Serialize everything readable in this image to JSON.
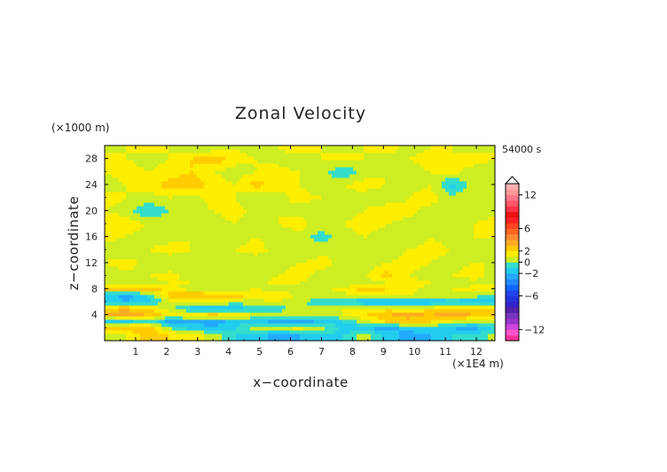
{
  "chart_data": {
    "type": "heatmap",
    "title": "Zonal Velocity",
    "xlabel": "x−coordinate",
    "ylabel": "z−coordinate",
    "x_unit": "(×1E4 m)",
    "y_unit": "(×1000 m)",
    "time_label": "54000 s",
    "xlim": [
      0,
      12.6
    ],
    "ylim": [
      0,
      30
    ],
    "x_ticks": [
      "1",
      "2",
      "3",
      "4",
      "5",
      "6",
      "7",
      "8",
      "9",
      "10",
      "11",
      "12"
    ],
    "y_ticks": [
      "4",
      "8",
      "12",
      "16",
      "20",
      "24",
      "28"
    ],
    "colorbar": {
      "vmin": -14,
      "vmax": 14,
      "tick_labels": [
        "12",
        "6",
        "2",
        "0",
        "−2",
        "−6",
        "−12"
      ],
      "tick_values": [
        12,
        6,
        2,
        0,
        -2,
        -6,
        -12
      ],
      "levels": [
        -14,
        -13,
        -12,
        -11,
        -10,
        -9,
        -8,
        -7,
        -6,
        -5,
        -4,
        -3,
        -2,
        -1,
        0,
        1,
        2,
        3,
        4,
        5,
        6,
        7,
        8,
        9,
        10,
        11,
        12,
        13,
        14
      ],
      "colors": [
        "#ff3399",
        "#ff55cc",
        "#cc44dd",
        "#9933cc",
        "#7733bb",
        "#5522aa",
        "#3322cc",
        "#2233dd",
        "#2244ee",
        "#1166ff",
        "#2288ff",
        "#22aaff",
        "#22ccee",
        "#33ddcc",
        "#ccee22",
        "#ffee00",
        "#ffcc00",
        "#ffaa22",
        "#ff8833",
        "#ff6622",
        "#ff4422",
        "#ff2222",
        "#ee1111",
        "#ff3344",
        "#ff5566",
        "#ff7788",
        "#ff9999",
        "#ffb0b0"
      ],
      "extend_max": true
    },
    "rows_z": [
      1,
      2,
      3,
      4,
      5,
      6,
      7,
      8,
      9,
      10,
      12,
      14,
      16,
      18,
      20,
      22,
      24,
      26,
      28,
      29.5
    ],
    "cols_x": [
      0,
      0.7,
      1.4,
      2.1,
      2.8,
      3.5,
      4.2,
      4.9,
      5.6,
      6.3,
      7.0,
      7.7,
      8.4,
      9.1,
      9.8,
      10.5,
      11.2,
      11.9,
      12.6
    ],
    "values": [
      [
        0.5,
        1.0,
        2.5,
        2.0,
        1.5,
        0.5,
        -1.0,
        -1.5,
        -2.5,
        -2.0,
        -1.5,
        -1.0,
        0.5,
        -1.5,
        -2.5,
        -2.0,
        -1.0,
        -1.0,
        0.5
      ],
      [
        2.5,
        3.0,
        2.5,
        0.0,
        -1.5,
        -2.0,
        -1.0,
        0.5,
        1.0,
        1.5,
        0.5,
        -1.5,
        -2.0,
        -2.5,
        -1.5,
        -1.0,
        -2.0,
        -2.5,
        -1.0
      ],
      [
        -2.0,
        -1.5,
        0.0,
        -2.5,
        -2.0,
        -2.5,
        -1.5,
        -1.5,
        -2.5,
        -3.0,
        -1.5,
        -1.0,
        0.5,
        2.0,
        2.5,
        2.0,
        1.0,
        0.5,
        1.0
      ],
      [
        3.0,
        3.5,
        3.0,
        1.5,
        2.0,
        2.5,
        2.0,
        1.0,
        0.5,
        1.0,
        0.5,
        1.0,
        2.0,
        3.0,
        3.5,
        3.0,
        3.5,
        3.0,
        2.5
      ],
      [
        2.5,
        3.0,
        2.0,
        0.5,
        -1.5,
        -2.0,
        -1.5,
        -1.0,
        -0.5,
        0.5,
        0.5,
        1.0,
        1.5,
        1.5,
        1.0,
        1.5,
        2.0,
        2.5,
        2.0
      ],
      [
        -1.0,
        -2.0,
        -1.5,
        0.5,
        1.0,
        1.0,
        0.5,
        0.5,
        1.0,
        0.0,
        -0.5,
        -1.0,
        -2.0,
        -2.5,
        -2.5,
        -2.0,
        -1.5,
        -2.0,
        -1.5
      ],
      [
        -1.5,
        -2.5,
        -1.0,
        2.5,
        3.0,
        3.0,
        2.5,
        2.0,
        1.5,
        1.0,
        0.5,
        0.5,
        1.0,
        1.5,
        1.0,
        0.5,
        1.0,
        0.5,
        0.0
      ],
      [
        2.5,
        2.5,
        3.0,
        1.5,
        0.5,
        0.0,
        0.5,
        1.0,
        0.5,
        0.5,
        0.5,
        1.5,
        2.5,
        2.0,
        1.5,
        0.5,
        1.0,
        1.5,
        1.0
      ],
      [
        1.0,
        0.5,
        0.5,
        1.0,
        1.0,
        0.5,
        0.0,
        0.5,
        1.5,
        1.0,
        0.5,
        0.0,
        0.5,
        1.0,
        1.5,
        1.0,
        0.5,
        0.5,
        1.0
      ],
      [
        0.5,
        0.5,
        1.0,
        1.5,
        0.5,
        0.0,
        0.5,
        0.5,
        1.0,
        1.5,
        0.5,
        0.5,
        1.0,
        2.5,
        1.0,
        0.5,
        1.0,
        1.5,
        0.5
      ],
      [
        1.0,
        1.5,
        0.5,
        0.0,
        0.5,
        1.0,
        0.5,
        0.0,
        0.5,
        1.0,
        1.5,
        0.5,
        0.0,
        1.0,
        1.5,
        1.0,
        0.5,
        1.0,
        1.0
      ],
      [
        0.5,
        0.0,
        1.0,
        1.5,
        1.0,
        0.5,
        1.0,
        1.5,
        0.5,
        0.0,
        0.5,
        1.0,
        0.5,
        0.0,
        1.0,
        1.5,
        1.0,
        0.5,
        0.5
      ],
      [
        1.5,
        1.0,
        0.5,
        0.5,
        1.0,
        0.0,
        0.5,
        1.0,
        0.5,
        0.5,
        -0.5,
        0.5,
        1.0,
        0.5,
        0.0,
        1.0,
        0.5,
        1.0,
        1.0
      ],
      [
        2.0,
        1.5,
        1.0,
        0.5,
        0.0,
        0.5,
        1.0,
        0.5,
        1.0,
        1.5,
        0.5,
        1.0,
        1.5,
        1.0,
        0.5,
        0.0,
        0.5,
        1.0,
        1.5
      ],
      [
        1.0,
        0.5,
        -1.0,
        0.0,
        0.5,
        1.0,
        1.5,
        0.5,
        1.0,
        0.5,
        0.0,
        0.5,
        1.0,
        2.0,
        1.5,
        0.5,
        1.0,
        0.5,
        0.5
      ],
      [
        1.5,
        1.0,
        0.5,
        1.0,
        0.5,
        1.5,
        1.0,
        0.0,
        0.5,
        1.5,
        1.0,
        0.5,
        0.5,
        0.0,
        1.0,
        1.5,
        0.5,
        1.0,
        1.0
      ],
      [
        0.5,
        1.0,
        1.5,
        2.5,
        3.0,
        1.5,
        1.0,
        2.5,
        1.5,
        1.0,
        0.0,
        1.0,
        1.5,
        1.0,
        0.5,
        1.0,
        -1.5,
        0.5,
        1.0
      ],
      [
        1.0,
        1.5,
        1.0,
        1.5,
        2.0,
        1.0,
        0.5,
        1.0,
        1.5,
        1.0,
        0.5,
        -1.0,
        0.5,
        1.0,
        0.5,
        1.0,
        1.5,
        0.5,
        0.5
      ],
      [
        1.5,
        1.0,
        0.5,
        1.0,
        2.0,
        3.0,
        1.5,
        1.0,
        0.5,
        0.0,
        1.0,
        1.5,
        1.0,
        0.5,
        1.0,
        1.5,
        1.0,
        1.5,
        1.0
      ],
      [
        0.5,
        1.0,
        1.5,
        1.0,
        0.5,
        0.5,
        1.0,
        0.5,
        1.0,
        1.5,
        1.0,
        0.5,
        1.0,
        1.5,
        0.5,
        1.0,
        1.0,
        0.5,
        1.0
      ]
    ]
  }
}
